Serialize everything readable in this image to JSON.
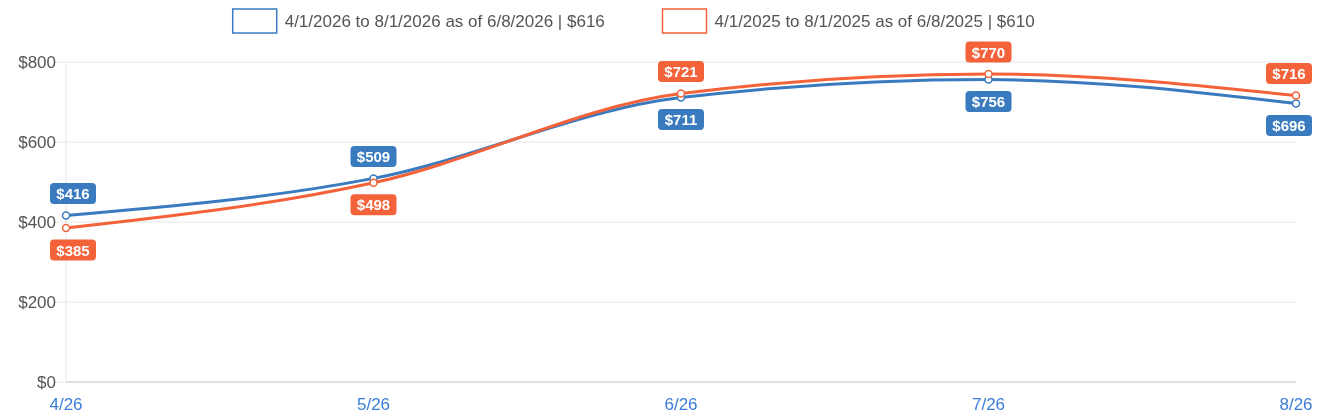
{
  "chart_data": {
    "type": "line",
    "categories": [
      "4/26",
      "5/26",
      "6/26",
      "7/26",
      "8/26"
    ],
    "series": [
      {
        "name": "4/1/2026 to 8/1/2026 as of 6/8/2026 | $616",
        "color": "#3a7bbf",
        "values": [
          416,
          509,
          711,
          756,
          696
        ],
        "value_labels": [
          "$416",
          "$509",
          "$711",
          "$756",
          "$696"
        ]
      },
      {
        "name": "4/1/2025 to 8/1/2025 as of 6/8/2025 | $610",
        "color": "#f4623a",
        "values": [
          385,
          498,
          721,
          770,
          716
        ],
        "value_labels": [
          "$385",
          "$498",
          "$721",
          "$770",
          "$716"
        ]
      }
    ],
    "ylim": [
      0,
      800
    ],
    "yticks": [
      {
        "value": 0,
        "label": "$0"
      },
      {
        "value": 200,
        "label": "$200"
      },
      {
        "value": 400,
        "label": "$400"
      },
      {
        "value": 600,
        "label": "$600"
      },
      {
        "value": 800,
        "label": "$800"
      }
    ],
    "grid": "y",
    "legend": "top",
    "marker": "circle",
    "line_style": "solid"
  }
}
